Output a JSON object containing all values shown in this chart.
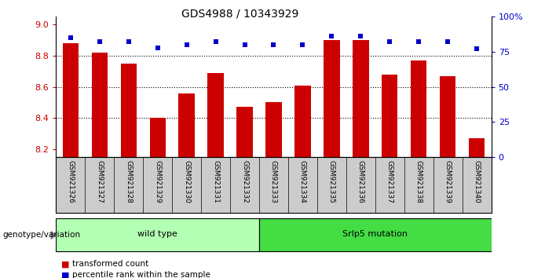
{
  "title": "GDS4988 / 10343929",
  "categories": [
    "GSM921326",
    "GSM921327",
    "GSM921328",
    "GSM921329",
    "GSM921330",
    "GSM921331",
    "GSM921332",
    "GSM921333",
    "GSM921334",
    "GSM921335",
    "GSM921336",
    "GSM921337",
    "GSM921338",
    "GSM921339",
    "GSM921340"
  ],
  "bar_values": [
    8.88,
    8.82,
    8.75,
    8.4,
    8.56,
    8.69,
    8.47,
    8.5,
    8.61,
    8.9,
    8.9,
    8.68,
    8.77,
    8.67,
    8.27
  ],
  "bar_color": "#cc0000",
  "percentile_values": [
    85,
    82,
    82,
    78,
    80,
    82,
    80,
    80,
    80,
    86,
    86,
    82,
    82,
    82,
    77
  ],
  "percentile_color": "#0000cc",
  "ylim_left": [
    8.15,
    9.05
  ],
  "ylim_right": [
    0,
    100
  ],
  "yticks_left": [
    8.2,
    8.4,
    8.6,
    8.8,
    9.0
  ],
  "yticks_right": [
    0,
    25,
    50,
    75,
    100
  ],
  "ytick_labels_right": [
    "0",
    "25",
    "50",
    "75",
    "100%"
  ],
  "grid_values": [
    8.4,
    8.6,
    8.8
  ],
  "groups": [
    {
      "label": "wild type",
      "start": 0,
      "end": 7,
      "color": "#b3ffb3"
    },
    {
      "label": "Srlp5 mutation",
      "start": 7,
      "end": 15,
      "color": "#44dd44"
    }
  ],
  "genotype_label": "genotype/variation",
  "legend_items": [
    {
      "label": "transformed count",
      "color": "#cc0000"
    },
    {
      "label": "percentile rank within the sample",
      "color": "#0000cc"
    }
  ],
  "bar_width": 0.55,
  "bar_bottom": 8.15,
  "tick_area_color": "#cccccc"
}
